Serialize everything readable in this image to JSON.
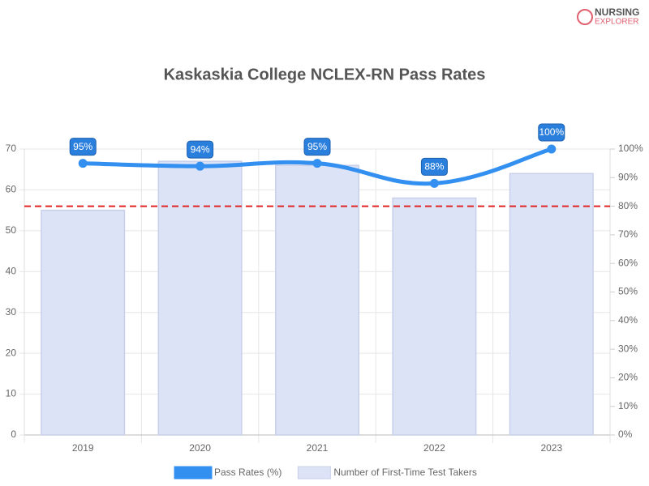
{
  "logo": [
    "NURSING",
    "EXPLORER"
  ],
  "chart_data": {
    "type": "bar-line",
    "title": "Kaskaskia College NCLEX-RN Pass Rates",
    "categories": [
      "2019",
      "2020",
      "2021",
      "2022",
      "2023"
    ],
    "series": [
      {
        "name": "Pass Rates (%)",
        "type": "line",
        "axis": "y2",
        "color": "#3390f0",
        "values": [
          95,
          94,
          95,
          88,
          100
        ],
        "value_labels": [
          "95%",
          "94%",
          "95%",
          "88%",
          "100%"
        ]
      },
      {
        "name": "Number of First-Time Test Takers",
        "type": "bar",
        "color": "#dde3f7",
        "values": [
          55,
          67,
          66,
          58,
          64
        ]
      }
    ],
    "ylim": [
      0,
      70
    ],
    "yticks": [
      0,
      10,
      20,
      30,
      40,
      50,
      60,
      70
    ],
    "y2lim": [
      0,
      100
    ],
    "y2ticks": [
      {
        "value": 0,
        "label": "0%"
      },
      {
        "value": 10,
        "label": "10%"
      },
      {
        "value": 20,
        "label": "20%"
      },
      {
        "value": 30,
        "label": "30%"
      },
      {
        "value": 40,
        "label": "40%"
      },
      {
        "value": 50,
        "label": "50%"
      },
      {
        "value": 60,
        "label": "60%"
      },
      {
        "value": 70,
        "label": "70%"
      },
      {
        "value": 80,
        "label": "80%"
      },
      {
        "value": 90,
        "label": "90%"
      },
      {
        "value": 100,
        "label": "100%"
      }
    ],
    "reference_line": {
      "value": 80,
      "axis": "y2",
      "color": "#e02424"
    },
    "grid": true
  }
}
